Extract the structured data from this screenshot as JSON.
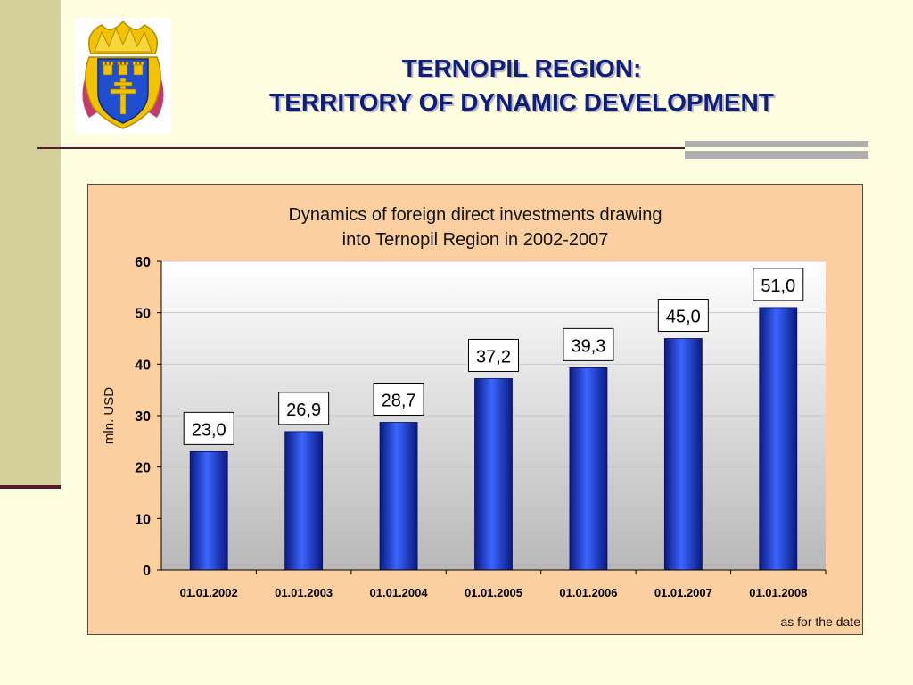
{
  "slide": {
    "title_line1": "TERNOPIL REGION:",
    "title_line2": "TERRITORY OF DYNAMIC DEVELOPMENT"
  },
  "colors": {
    "title": "#0f1e78",
    "chart_bg": "#fbcf9f",
    "bar": "#1f3fd0",
    "accent_line": "#5a1a2e"
  },
  "icons": {
    "crest": "ternopil-coat-of-arms-icon"
  },
  "chart_data": {
    "type": "bar",
    "title_line1": "Dynamics of foreign direct investments drawing",
    "title_line2": "into Ternopil Region in 2002-2007",
    "ylabel": "mln. USD",
    "xlabel": "",
    "footnote": "as for the date",
    "categories": [
      "01.01.2002",
      "01.01.2003",
      "01.01.2004",
      "01.01.2005",
      "01.01.2006",
      "01.01.2007",
      "01.01.2008"
    ],
    "values": [
      23.0,
      26.9,
      28.7,
      37.2,
      39.3,
      45.0,
      51.0
    ],
    "value_labels": [
      "23,0",
      "26,9",
      "28,7",
      "37,2",
      "39,3",
      "45,0",
      "51,0"
    ],
    "ylim": [
      0,
      60
    ],
    "yticks": [
      0,
      10,
      20,
      30,
      40,
      50,
      60
    ],
    "grid": true,
    "legend": "none"
  }
}
